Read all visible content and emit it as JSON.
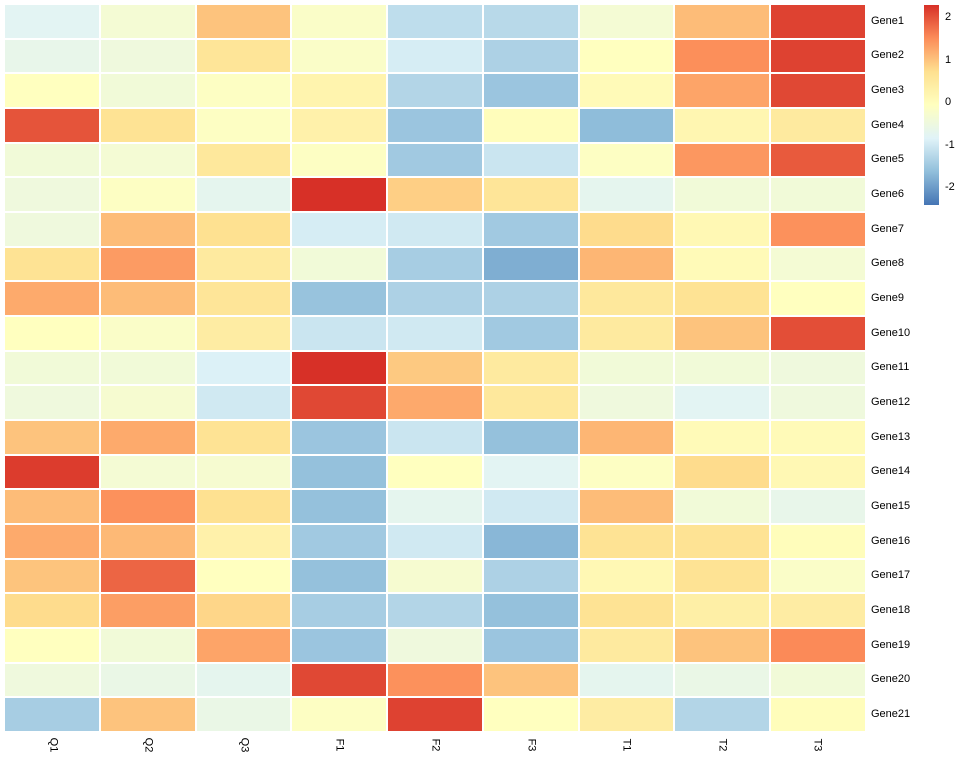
{
  "chart_data": {
    "type": "heatmap",
    "title": "",
    "rows": [
      "Gene1",
      "Gene2",
      "Gene3",
      "Gene4",
      "Gene5",
      "Gene6",
      "Gene7",
      "Gene8",
      "Gene9",
      "Gene10",
      "Gene11",
      "Gene12",
      "Gene13",
      "Gene14",
      "Gene15",
      "Gene16",
      "Gene17",
      "Gene18",
      "Gene19",
      "Gene20",
      "Gene21"
    ],
    "columns": [
      "Q1",
      "Q2",
      "Q3",
      "F1",
      "F2",
      "F3",
      "T1",
      "T2",
      "T3"
    ],
    "values": [
      [
        -0.76,
        -0.34,
        1.01,
        -0.17,
        -1.17,
        -1.23,
        -0.34,
        1.07,
        2.15
      ],
      [
        -0.64,
        -0.46,
        0.6,
        -0.17,
        -0.93,
        -1.34,
        -0.05,
        1.5,
        2.15
      ],
      [
        -0.05,
        -0.4,
        -0.11,
        0.24,
        -1.28,
        -1.52,
        0.07,
        1.3,
        2.1
      ],
      [
        2.0,
        0.66,
        -0.11,
        0.3,
        -1.52,
        0.01,
        -1.64,
        0.19,
        0.48
      ],
      [
        -0.4,
        -0.34,
        0.54,
        -0.11,
        -1.46,
        -1.05,
        -0.11,
        1.42,
        1.95
      ],
      [
        -0.46,
        -0.11,
        -0.7,
        2.3,
        0.89,
        0.6,
        -0.7,
        -0.4,
        -0.4
      ],
      [
        -0.46,
        1.07,
        0.71,
        -0.93,
        -0.99,
        -1.46,
        0.77,
        0.13,
        1.48
      ],
      [
        0.66,
        1.38,
        0.48,
        -0.4,
        -1.4,
        -1.8,
        1.13,
        0.07,
        -0.34
      ],
      [
        1.24,
        1.07,
        0.6,
        -1.55,
        -1.34,
        -1.34,
        0.54,
        0.66,
        -0.05
      ],
      [
        -0.05,
        -0.17,
        0.42,
        -1.05,
        -0.99,
        -1.46,
        0.48,
        1.01,
        2.05
      ],
      [
        -0.4,
        -0.4,
        -0.87,
        2.3,
        0.95,
        0.48,
        -0.4,
        -0.4,
        -0.46
      ],
      [
        -0.46,
        -0.28,
        -0.99,
        2.1,
        1.25,
        0.54,
        -0.46,
        -0.76,
        -0.46
      ],
      [
        1.01,
        1.24,
        0.66,
        -1.52,
        -1.05,
        -1.58,
        1.13,
        0.07,
        0.07
      ],
      [
        2.2,
        -0.34,
        -0.28,
        -1.58,
        -0.05,
        -0.76,
        -0.11,
        0.77,
        0.13
      ],
      [
        1.07,
        1.48,
        0.71,
        -1.58,
        -0.7,
        -0.99,
        1.07,
        -0.4,
        -0.64
      ],
      [
        1.24,
        1.1,
        0.3,
        -1.46,
        -0.99,
        -1.7,
        0.66,
        0.66,
        0.01
      ],
      [
        1.0,
        1.85,
        -0.05,
        -1.58,
        -0.28,
        -1.34,
        0.13,
        0.66,
        -0.17
      ],
      [
        0.77,
        1.36,
        0.83,
        -1.4,
        -1.28,
        -1.58,
        0.66,
        0.36,
        0.42
      ],
      [
        -0.05,
        -0.4,
        1.3,
        -1.52,
        -0.46,
        -1.52,
        0.48,
        1.01,
        1.54
      ],
      [
        -0.46,
        -0.58,
        -0.7,
        2.1,
        1.48,
        1.01,
        -0.7,
        -0.58,
        -0.4
      ],
      [
        -1.4,
        1.01,
        -0.58,
        -0.11,
        2.15,
        -0.05,
        0.42,
        -1.28,
        0.01
      ]
    ],
    "value_domain": [
      -2.4,
      2.3
    ],
    "colormap": {
      "name": "RdYlBu-reversed",
      "stops": [
        "#4575b4",
        "#91bfdb",
        "#e0f3f8",
        "#ffffbf",
        "#fee090",
        "#fc8d59",
        "#d73027"
      ]
    },
    "legend": {
      "position": "right",
      "tick_labels": [
        "2",
        "1",
        "0",
        "-1",
        "-2"
      ],
      "tick_values": [
        2,
        1,
        0,
        -1,
        -2
      ]
    },
    "grid_line_color": "#ffffff",
    "label_color": "#000000"
  }
}
